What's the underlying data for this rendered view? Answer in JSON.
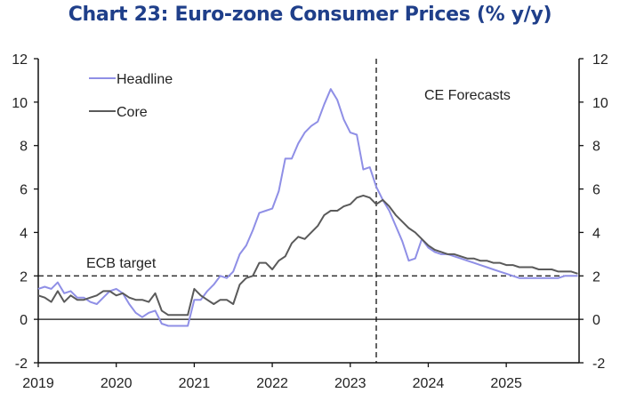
{
  "chart_data": {
    "type": "line",
    "title": "Chart 23: Euro-zone Consumer Prices (% y/y)",
    "xlabel": "",
    "ylabel": "",
    "ylim": [
      -2,
      12
    ],
    "yticks": [
      -2,
      0,
      2,
      4,
      6,
      8,
      10,
      12
    ],
    "yticks_right": [
      -2,
      0,
      2,
      4,
      6,
      8,
      10,
      12
    ],
    "xticks": [
      "2019",
      "2020",
      "2021",
      "2022",
      "2023",
      "2024",
      "2025"
    ],
    "x_start": "2019-01",
    "x_end": "2025-12",
    "frequency": "monthly",
    "legend": {
      "placement": "top-left",
      "entries": [
        "Headline",
        "Core"
      ]
    },
    "series": [
      {
        "name": "Headline",
        "color": "#8f8fe6",
        "values": [
          1.4,
          1.5,
          1.4,
          1.7,
          1.2,
          1.3,
          1.0,
          1.0,
          0.8,
          0.7,
          1.0,
          1.3,
          1.4,
          1.2,
          0.7,
          0.3,
          0.1,
          0.3,
          0.4,
          -0.2,
          -0.3,
          -0.3,
          -0.3,
          -0.3,
          0.9,
          0.9,
          1.3,
          1.6,
          2.0,
          1.9,
          2.2,
          3.0,
          3.4,
          4.1,
          4.9,
          5.0,
          5.1,
          5.9,
          7.4,
          7.4,
          8.1,
          8.6,
          8.9,
          9.1,
          9.9,
          10.6,
          10.1,
          9.2,
          8.6,
          8.5,
          6.9,
          7.0,
          6.1,
          5.5,
          5.0,
          4.3,
          3.6,
          2.7,
          2.8,
          3.7,
          3.3,
          3.1,
          3.0,
          3.0,
          2.9,
          2.8,
          2.7,
          2.6,
          2.5,
          2.4,
          2.3,
          2.2,
          2.1,
          2.0,
          1.9,
          1.9,
          1.9,
          1.9,
          1.9,
          1.9,
          1.9,
          2.0,
          2.0,
          2.0
        ]
      },
      {
        "name": "Core",
        "color": "#5a5a5a",
        "values": [
          1.1,
          1.0,
          0.8,
          1.3,
          0.8,
          1.1,
          0.9,
          0.9,
          1.0,
          1.1,
          1.3,
          1.3,
          1.1,
          1.2,
          1.0,
          0.9,
          0.9,
          0.8,
          1.2,
          0.4,
          0.2,
          0.2,
          0.2,
          0.2,
          1.4,
          1.1,
          0.9,
          0.7,
          0.9,
          0.9,
          0.7,
          1.6,
          1.9,
          2.0,
          2.6,
          2.6,
          2.3,
          2.7,
          2.9,
          3.5,
          3.8,
          3.7,
          4.0,
          4.3,
          4.8,
          5.0,
          5.0,
          5.2,
          5.3,
          5.6,
          5.7,
          5.6,
          5.3,
          5.5,
          5.2,
          4.8,
          4.5,
          4.2,
          4.0,
          3.7,
          3.4,
          3.2,
          3.1,
          3.0,
          3.0,
          2.9,
          2.8,
          2.8,
          2.7,
          2.7,
          2.6,
          2.6,
          2.5,
          2.5,
          2.4,
          2.4,
          2.4,
          2.3,
          2.3,
          2.3,
          2.2,
          2.2,
          2.2,
          2.1
        ]
      }
    ],
    "reference_lines": [
      {
        "type": "horizontal",
        "value": 2,
        "label": "ECB target",
        "style": "dashed"
      },
      {
        "type": "vertical",
        "x": "2023-05",
        "label": "CE Forecasts",
        "style": "dashed"
      }
    ]
  }
}
